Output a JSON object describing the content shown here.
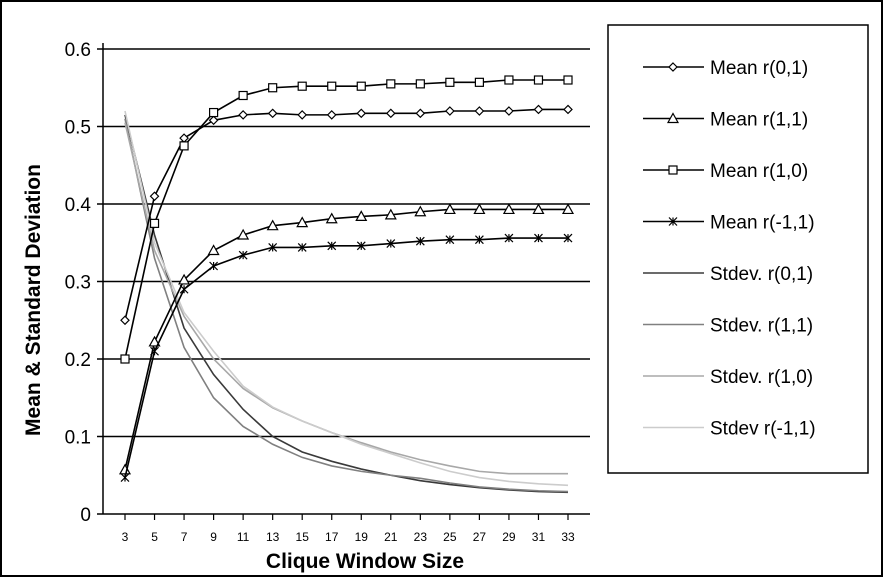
{
  "chart_data": {
    "type": "line",
    "title": "",
    "xlabel": "Clique Window Size",
    "ylabel": "Mean & Standard Deviation",
    "x": [
      3,
      5,
      7,
      9,
      11,
      13,
      15,
      17,
      19,
      21,
      23,
      25,
      27,
      29,
      31,
      33
    ],
    "xlim": [
      3,
      33
    ],
    "ylim": [
      0,
      0.6
    ],
    "yticks": [
      "0",
      "0.1",
      "0.2",
      "0.3",
      "0.4",
      "0.5",
      "0.6"
    ],
    "xticks": [
      "3",
      "5",
      "7",
      "9",
      "11",
      "13",
      "15",
      "17",
      "19",
      "21",
      "23",
      "25",
      "27",
      "29",
      "31",
      "33"
    ],
    "grid": "horizontal",
    "legend_position": "right",
    "series": [
      {
        "name": "Mean r(0,1)",
        "marker": "diamond",
        "color": "#000000",
        "values": [
          0.25,
          0.41,
          0.485,
          0.508,
          0.515,
          0.517,
          0.515,
          0.515,
          0.517,
          0.517,
          0.517,
          0.52,
          0.52,
          0.52,
          0.522,
          0.522
        ]
      },
      {
        "name": "Mean r(1,1)",
        "marker": "triangle",
        "color": "#000000",
        "values": [
          0.057,
          0.222,
          0.302,
          0.34,
          0.36,
          0.372,
          0.376,
          0.381,
          0.384,
          0.386,
          0.39,
          0.393,
          0.393,
          0.393,
          0.393,
          0.393
        ]
      },
      {
        "name": "Mean r(1,0)",
        "marker": "square",
        "color": "#000000",
        "values": [
          0.2,
          0.375,
          0.475,
          0.518,
          0.54,
          0.55,
          0.552,
          0.552,
          0.552,
          0.555,
          0.555,
          0.557,
          0.557,
          0.56,
          0.56,
          0.56
        ]
      },
      {
        "name": "Mean r(-1,1)",
        "marker": "star",
        "color": "#000000",
        "values": [
          0.047,
          0.21,
          0.29,
          0.32,
          0.334,
          0.344,
          0.344,
          0.346,
          0.346,
          0.349,
          0.352,
          0.354,
          0.354,
          0.356,
          0.356,
          0.356
        ]
      },
      {
        "name": "Stdev. r(0,1)",
        "marker": "none",
        "color": "#3a3a3a",
        "values": [
          0.515,
          0.36,
          0.24,
          0.18,
          0.135,
          0.1,
          0.08,
          0.068,
          0.058,
          0.05,
          0.043,
          0.038,
          0.034,
          0.031,
          0.029,
          0.028
        ]
      },
      {
        "name": "Stdev. r(1,1)",
        "marker": "none",
        "color": "#808080",
        "values": [
          0.51,
          0.33,
          0.215,
          0.15,
          0.113,
          0.09,
          0.073,
          0.062,
          0.055,
          0.05,
          0.046,
          0.04,
          0.035,
          0.032,
          0.03,
          0.029
        ]
      },
      {
        "name": "Stdev. r(1,0)",
        "marker": "none",
        "color": "#a8a8a8",
        "values": [
          0.505,
          0.34,
          0.255,
          0.2,
          0.162,
          0.137,
          0.12,
          0.105,
          0.092,
          0.08,
          0.07,
          0.062,
          0.055,
          0.052,
          0.052,
          0.052
        ]
      },
      {
        "name": "Stdev r(-1,1)",
        "marker": "none",
        "color": "#cccccc",
        "values": [
          0.52,
          0.35,
          0.26,
          0.21,
          0.165,
          0.138,
          0.12,
          0.105,
          0.09,
          0.078,
          0.066,
          0.055,
          0.047,
          0.042,
          0.039,
          0.037
        ]
      }
    ]
  }
}
